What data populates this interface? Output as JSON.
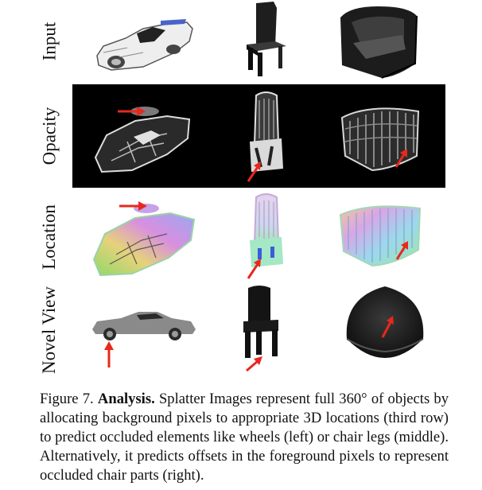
{
  "rows": [
    {
      "label": "Input"
    },
    {
      "label": "Opacity"
    },
    {
      "label": "Location"
    },
    {
      "label": "Novel View"
    }
  ],
  "caption": {
    "figure": "Figure 7.",
    "heading": "Analysis.",
    "text": "Splatter Images represent full 360° of objects by allocating background pixels to appropriate 3D locations (third row) to predict occluded elements like wheels (left) or chair legs (middle). Alternatively, it predicts offsets in the foreground pixels to represent occluded chair parts (right)."
  },
  "colors": {
    "arrow": "#e8281e",
    "panel_bg": "#000000"
  },
  "icons": [
    "red-arrow-icon"
  ]
}
